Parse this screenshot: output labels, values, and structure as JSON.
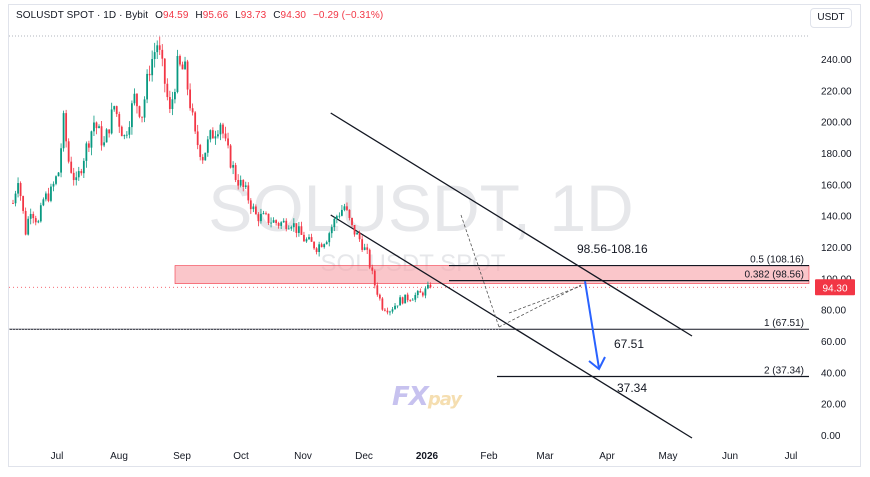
{
  "header": {
    "symbol": "SOLUSDT SPOT · 1D · Bybit",
    "open_label": "O",
    "open": "94.59",
    "high_label": "H",
    "high": "95.66",
    "low_label": "L",
    "low": "93.73",
    "close_label": "C",
    "close": "94.30",
    "change": "−0.29 (−0.31%)"
  },
  "currency": "USDT",
  "watermark": {
    "main": "SOLUSDT, 1D",
    "sub": "SOLUSDT SPOT"
  },
  "logo": {
    "part1": "FX",
    "part2": "pay"
  },
  "colors": {
    "up": "#089981",
    "down": "#f23645",
    "arrow": "#2962ff",
    "zone": "#f7a8ad",
    "price_label": "#f23645"
  },
  "chart_data": {
    "type": "candlestick",
    "y_axis": {
      "ticks": [
        "240.00",
        "220.00",
        "200.00",
        "180.00",
        "160.00",
        "140.00",
        "120.00",
        "100.00",
        "80.00",
        "60.00",
        "40.00",
        "20.00",
        "0.00"
      ],
      "ylim": [
        -2,
        252
      ]
    },
    "x_axis": {
      "ticks": [
        "Jul",
        "Aug",
        "Sep",
        "Oct",
        "Nov",
        "Dec",
        "2026",
        "Feb",
        "Mar",
        "Apr",
        "May",
        "Jun",
        "Jul"
      ]
    },
    "price_path": [
      [
        0,
        148
      ],
      [
        2,
        165
      ],
      [
        5,
        130
      ],
      [
        7,
        145
      ],
      [
        10,
        135
      ],
      [
        12,
        150
      ],
      [
        15,
        155
      ],
      [
        18,
        168
      ],
      [
        20,
        200
      ],
      [
        22,
        175
      ],
      [
        25,
        160
      ],
      [
        28,
        178
      ],
      [
        32,
        200
      ],
      [
        36,
        185
      ],
      [
        40,
        210
      ],
      [
        44,
        190
      ],
      [
        48,
        215
      ],
      [
        51,
        205
      ],
      [
        54,
        235
      ],
      [
        57,
        250
      ],
      [
        60,
        225
      ],
      [
        62,
        205
      ],
      [
        65,
        235
      ],
      [
        68,
        232
      ],
      [
        70,
        212
      ],
      [
        72,
        190
      ],
      [
        75,
        178
      ],
      [
        78,
        190
      ],
      [
        82,
        200
      ],
      [
        84,
        185
      ],
      [
        88,
        165
      ],
      [
        92,
        155
      ],
      [
        96,
        140
      ],
      [
        100,
        138
      ],
      [
        105,
        135
      ],
      [
        110,
        136
      ],
      [
        115,
        125
      ],
      [
        120,
        120
      ],
      [
        124,
        126
      ],
      [
        128,
        140
      ],
      [
        131,
        146
      ],
      [
        134,
        132
      ],
      [
        137,
        125
      ],
      [
        140,
        115
      ],
      [
        143,
        96
      ],
      [
        146,
        82
      ],
      [
        149,
        80
      ],
      [
        153,
        86
      ],
      [
        157,
        88
      ],
      [
        161,
        90
      ],
      [
        165,
        94.3
      ]
    ],
    "current_price": "94.30",
    "zone": {
      "from": 98.56,
      "to": 108.16,
      "label": "98.56-108.16"
    },
    "fib_levels": [
      {
        "label": "0.5 (108.16)",
        "value": 108.16
      },
      {
        "label": "0.382 (98.56)",
        "value": 98.56
      },
      {
        "label": "1 (67.51)",
        "value": 67.51
      },
      {
        "label": "2 (37.34)",
        "value": 37.34
      }
    ],
    "targets": [
      {
        "label": "67.51",
        "value": 67.51
      },
      {
        "label": "37.34",
        "value": 37.34
      }
    ],
    "channel": {
      "upper": [
        [
          124,
          205
        ],
        [
          303,
          41
        ]
      ],
      "lower": [
        [
          124,
          140
        ],
        [
          303,
          -9
        ]
      ]
    },
    "projection": {
      "from": 94.3,
      "to": 40
    }
  }
}
